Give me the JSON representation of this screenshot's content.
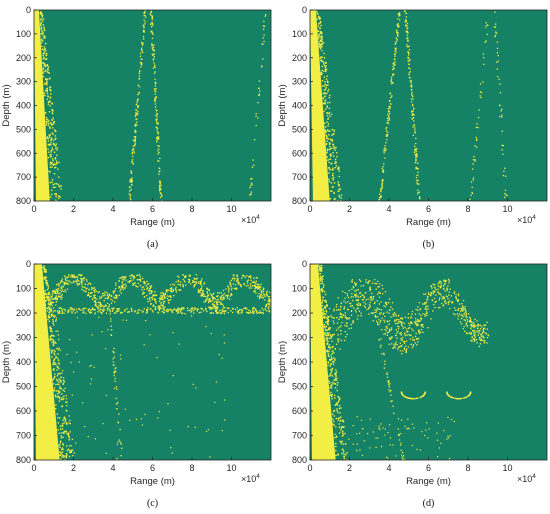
{
  "colors": {
    "background": "#168265",
    "ray": "#F3EE43",
    "axis": "#262626"
  },
  "chart_data": [
    {
      "type": "heatmap",
      "caption": "(a)",
      "xlabel": "Range (m)",
      "ylabel": "Depth (m)",
      "x_multiplier": "×10",
      "x_multiplier_exp": "4",
      "xlim": [
        0,
        12
      ],
      "ylim": [
        0,
        800
      ],
      "y_reversed": true,
      "xticks": [
        "0",
        "2",
        "4",
        "6",
        "8",
        "10"
      ],
      "yticks": [
        "0",
        "100",
        "200",
        "300",
        "400",
        "500",
        "600",
        "700",
        "800"
      ],
      "grid": false,
      "features": [
        {
          "kind": "wedge",
          "x_top": [
            0,
            0.25
          ],
          "x_bottom": [
            0.1,
            0.8
          ]
        },
        {
          "kind": "line",
          "x1": 5.6,
          "y1": 0,
          "x2": 4.8,
          "y2": 800
        },
        {
          "kind": "line",
          "x1": 5.9,
          "y1": 0,
          "x2": 6.4,
          "y2": 800
        },
        {
          "kind": "line",
          "x1": 11.7,
          "y1": 0,
          "x2": 10.9,
          "y2": 800,
          "faint": true
        }
      ]
    },
    {
      "type": "heatmap",
      "caption": "(b)",
      "xlabel": "Range (m)",
      "ylabel": "Depth (m)",
      "x_multiplier": "×10",
      "x_multiplier_exp": "4",
      "xlim": [
        0,
        12
      ],
      "ylim": [
        0,
        800
      ],
      "y_reversed": true,
      "xticks": [
        "0",
        "2",
        "4",
        "6",
        "8",
        "10"
      ],
      "yticks": [
        "0",
        "100",
        "200",
        "300",
        "400",
        "500",
        "600",
        "700",
        "800"
      ],
      "grid": false,
      "features": [
        {
          "kind": "wedge",
          "x_top": [
            0,
            0.3
          ],
          "x_bottom": [
            0.15,
            1.0
          ]
        },
        {
          "kind": "line",
          "x1": 4.5,
          "y1": 0,
          "x2": 3.5,
          "y2": 800
        },
        {
          "kind": "line",
          "x1": 4.8,
          "y1": 0,
          "x2": 5.5,
          "y2": 800
        },
        {
          "kind": "line",
          "x1": 9.0,
          "y1": 0,
          "x2": 8.1,
          "y2": 800,
          "faint": true
        },
        {
          "kind": "line",
          "x1": 9.3,
          "y1": 0,
          "x2": 9.9,
          "y2": 800,
          "faint": true
        }
      ]
    },
    {
      "type": "heatmap",
      "caption": "(c)",
      "xlabel": "Range (m)",
      "ylabel": "Depth (m)",
      "x_multiplier": "×10",
      "x_multiplier_exp": "4",
      "xlim": [
        0,
        12
      ],
      "ylim": [
        0,
        800
      ],
      "y_reversed": true,
      "xticks": [
        "0",
        "2",
        "4",
        "6",
        "8",
        "10"
      ],
      "yticks": [
        "0",
        "100",
        "200",
        "300",
        "400",
        "500",
        "600",
        "700",
        "800"
      ],
      "grid": false,
      "features": [
        {
          "kind": "wedge",
          "x_top": [
            0,
            0.4
          ],
          "x_bottom": [
            0.1,
            1.3
          ]
        },
        {
          "kind": "band",
          "x0": 0.5,
          "x1": 12,
          "y_top": 40,
          "y_bottom": 200,
          "density": "high"
        },
        {
          "kind": "line",
          "x1": 3.8,
          "y1": 150,
          "x2": 4.4,
          "y2": 800,
          "faint": true
        },
        {
          "kind": "line",
          "x1": 1.0,
          "y1": 200,
          "x2": 2.0,
          "y2": 800,
          "faint": true
        }
      ]
    },
    {
      "type": "heatmap",
      "caption": "(d)",
      "xlabel": "Range (m)",
      "ylabel": "Depth (m)",
      "x_multiplier": "×10",
      "x_multiplier_exp": "4",
      "xlim": [
        0,
        12
      ],
      "ylim": [
        0,
        800
      ],
      "y_reversed": true,
      "xticks": [
        "0",
        "2",
        "4",
        "6",
        "8",
        "10"
      ],
      "yticks": [
        "0",
        "100",
        "200",
        "300",
        "400",
        "500",
        "600",
        "700",
        "800"
      ],
      "grid": false,
      "features": [
        {
          "kind": "wedge",
          "x_top": [
            0,
            0.4
          ],
          "x_bottom": [
            0.1,
            1.3
          ]
        },
        {
          "kind": "band",
          "x0": 0.5,
          "x1": 9.0,
          "y_top": 60,
          "y_bottom": 620,
          "density": "medium"
        },
        {
          "kind": "arc",
          "cx": 5.2,
          "cy": 520,
          "r": 30
        },
        {
          "kind": "arc",
          "cx": 7.5,
          "cy": 520,
          "r": 30
        },
        {
          "kind": "line",
          "x1": 3.5,
          "y1": 300,
          "x2": 4.7,
          "y2": 800,
          "faint": true
        }
      ]
    }
  ]
}
